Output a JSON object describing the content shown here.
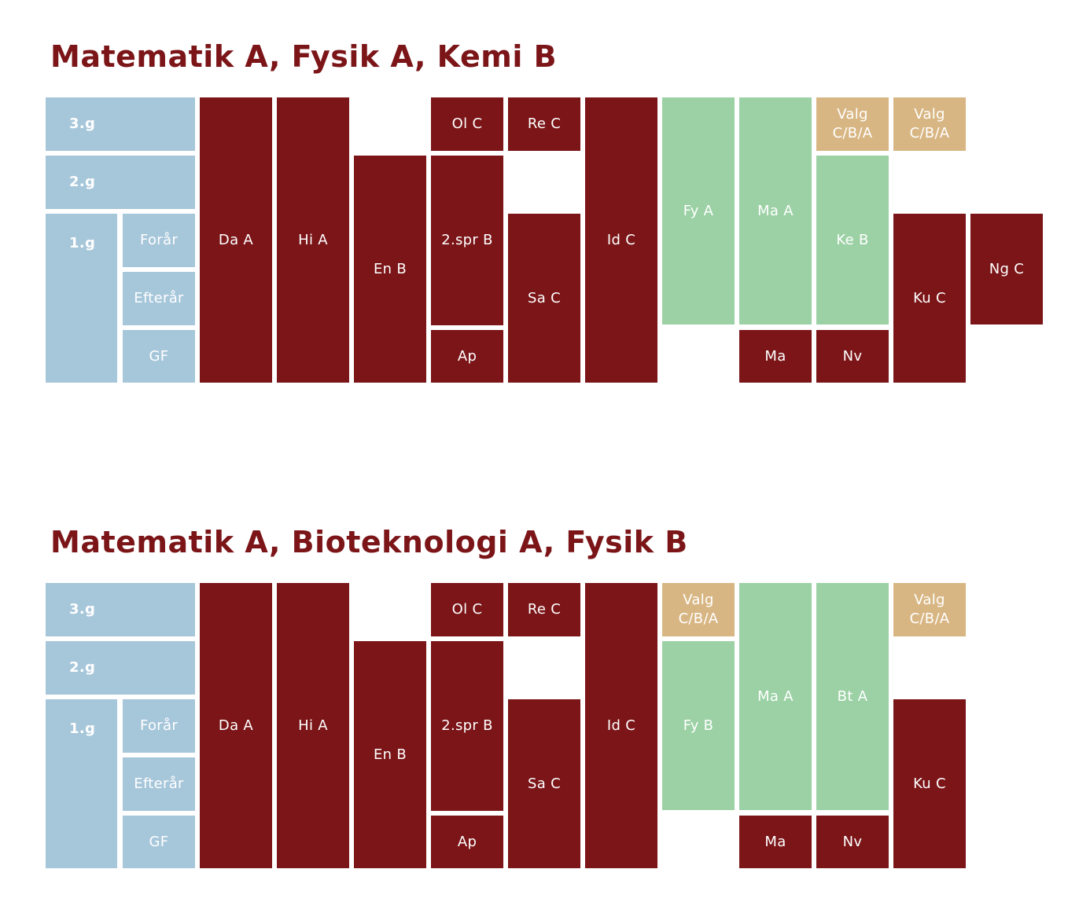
{
  "colors": {
    "period": "#a6c6da",
    "core": "#7b1518",
    "studieretning": "#9bd1a5",
    "valg": "#d8b683",
    "title": "#7b1518",
    "text_light": "#ffffff"
  },
  "diagrams": [
    {
      "title": "Matematik A, Fysik A, Kemi B",
      "periods": {
        "g3": "3.g",
        "g2": "2.g",
        "g1": "1.g",
        "foraar": "Forår",
        "efteraar": "Efterår",
        "gf": "GF"
      },
      "subjects": {
        "da": "Da A",
        "hi": "Hi A",
        "en": "En B",
        "ol": "Ol C",
        "spr": "2.spr B",
        "ap": "Ap",
        "re": "Re C",
        "sa": "Sa C",
        "id": "Id C",
        "c7": "Fy A",
        "c8": "Ma A",
        "ma": "Ma",
        "valg1": "Valg\nC/B/A",
        "c9": "Ke B",
        "nv": "Nv",
        "valg2": "Valg\nC/B/A",
        "ku": "Ku C",
        "ng": "Ng C"
      }
    },
    {
      "title": "Matematik A, Bioteknologi A, Fysik B",
      "periods": {
        "g3": "3.g",
        "g2": "2.g",
        "g1": "1.g",
        "foraar": "Forår",
        "efteraar": "Efterår",
        "gf": "GF"
      },
      "subjects": {
        "da": "Da A",
        "hi": "Hi A",
        "en": "En B",
        "ol": "Ol C",
        "spr": "2.spr B",
        "ap": "Ap",
        "re": "Re C",
        "sa": "Sa C",
        "id": "Id C",
        "valg1": "Valg\nC/B/A",
        "c7": "Fy B",
        "c8": "Ma A",
        "ma": "Ma",
        "c9": "Bt A",
        "nv": "Nv",
        "valg2": "Valg\nC/B/A",
        "ku": "Ku C"
      }
    }
  ]
}
